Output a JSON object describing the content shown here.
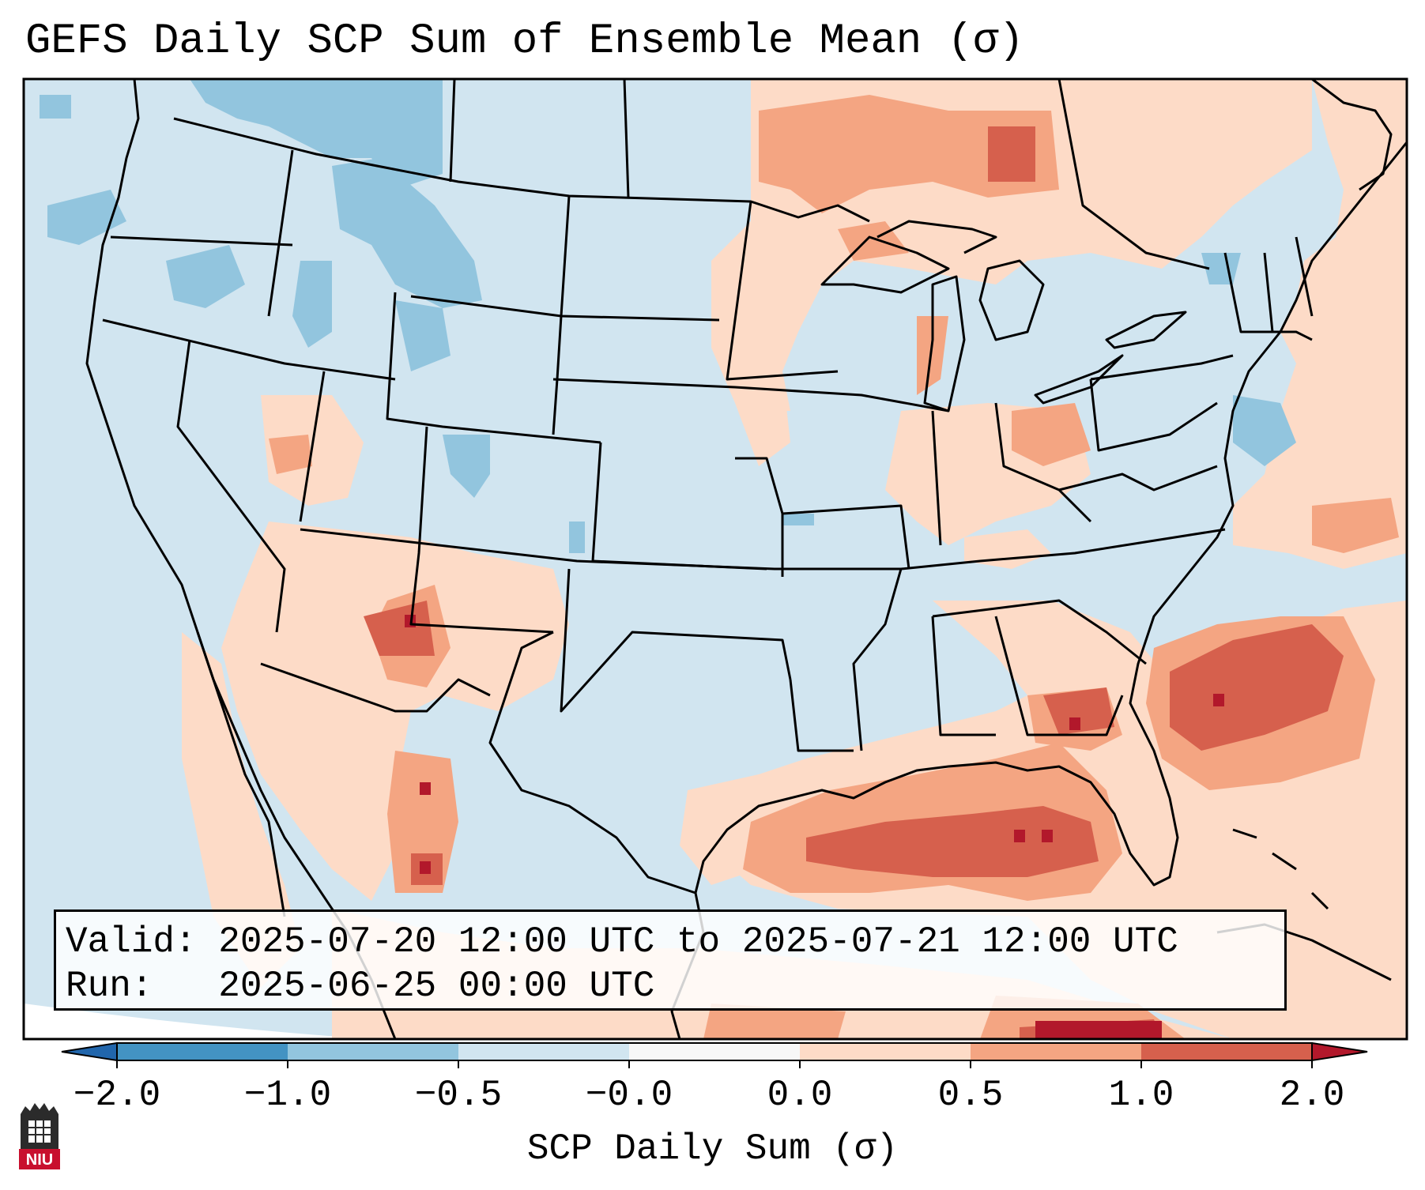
{
  "title": "GEFS Daily SCP Sum of Ensemble Mean (σ)",
  "info": {
    "valid_line": "Valid: 2025-07-20 12:00 UTC to 2025-07-21 12:00 UTC",
    "run_line": "Run:   2025-06-25 00:00 UTC"
  },
  "colorbar": {
    "label": "SCP Daily Sum (σ)",
    "ticks": [
      "−2.0",
      "−1.0",
      "−0.5",
      "−0.0",
      "0.0",
      "0.5",
      "1.0",
      "2.0"
    ],
    "bins": [
      {
        "from": -2.0,
        "to": -1.0,
        "color": "#4393c3"
      },
      {
        "from": -1.0,
        "to": -0.5,
        "color": "#92c5de"
      },
      {
        "from": -0.5,
        "to": -0.0,
        "color": "#d1e5f0"
      },
      {
        "from": -0.0,
        "to": 0.0,
        "color": "#f7f7f7"
      },
      {
        "from": 0.0,
        "to": 0.5,
        "color": "#fddbc7"
      },
      {
        "from": 0.5,
        "to": 1.0,
        "color": "#f4a582"
      },
      {
        "from": 1.0,
        "to": 2.0,
        "color": "#d6604d"
      }
    ],
    "under_color": "#2166ac",
    "over_color": "#b2182b"
  },
  "map": {
    "colors": {
      "neg_strong": "#92c5de",
      "neg_weak": "#d1e5f0",
      "pos_weak": "#fddbc7",
      "pos_mid": "#f4a582",
      "pos_strong": "#d6604d",
      "pos_max": "#b2182b",
      "borders": "#000000"
    }
  },
  "logo": {
    "text": "NIU",
    "colors": {
      "tower": "#2b2b2b",
      "badge": "#c8102e"
    }
  }
}
